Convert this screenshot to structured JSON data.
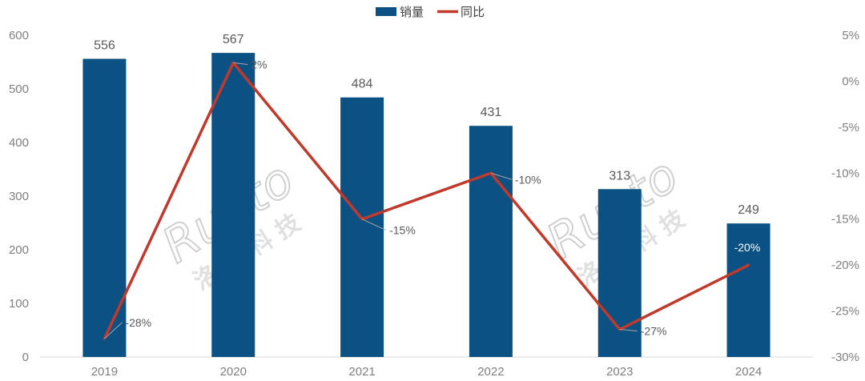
{
  "chart_data": {
    "type": "bar",
    "categories": [
      "2019",
      "2020",
      "2021",
      "2022",
      "2023",
      "2024"
    ],
    "series": [
      {
        "name": "销量",
        "kind": "bar",
        "axis": "left",
        "color": "#0b5184",
        "values": [
          556,
          567,
          484,
          431,
          313,
          249
        ],
        "labels": [
          "556",
          "567",
          "484",
          "431",
          "313",
          "249"
        ]
      },
      {
        "name": "同比",
        "kind": "line",
        "axis": "right",
        "color": "#c0392b",
        "values": [
          -28,
          2,
          -15,
          -10,
          -27,
          -20
        ],
        "labels": [
          "-28%",
          "2%",
          "-15%",
          "-10%",
          "-27%",
          "-20%"
        ]
      }
    ],
    "y_left": {
      "lim": [
        0,
        600
      ],
      "ticks": [
        0,
        100,
        200,
        300,
        400,
        500,
        600
      ],
      "tick_labels": [
        "0",
        "100",
        "200",
        "300",
        "400",
        "500",
        "600"
      ]
    },
    "y_right": {
      "lim": [
        -30,
        5
      ],
      "ticks": [
        5,
        0,
        -5,
        -10,
        -15,
        -20,
        -25,
        -30
      ],
      "tick_labels": [
        "5%",
        "0%",
        "-5%",
        "-10%",
        "-15%",
        "-20%",
        "-25%",
        "-30%"
      ]
    },
    "legend": {
      "position": "top-center",
      "entries": [
        "销量",
        "同比"
      ]
    },
    "grid": false
  },
  "watermark": {
    "text_latin": "Runto",
    "text_cn": [
      "洛",
      "图",
      "科",
      "技"
    ]
  }
}
